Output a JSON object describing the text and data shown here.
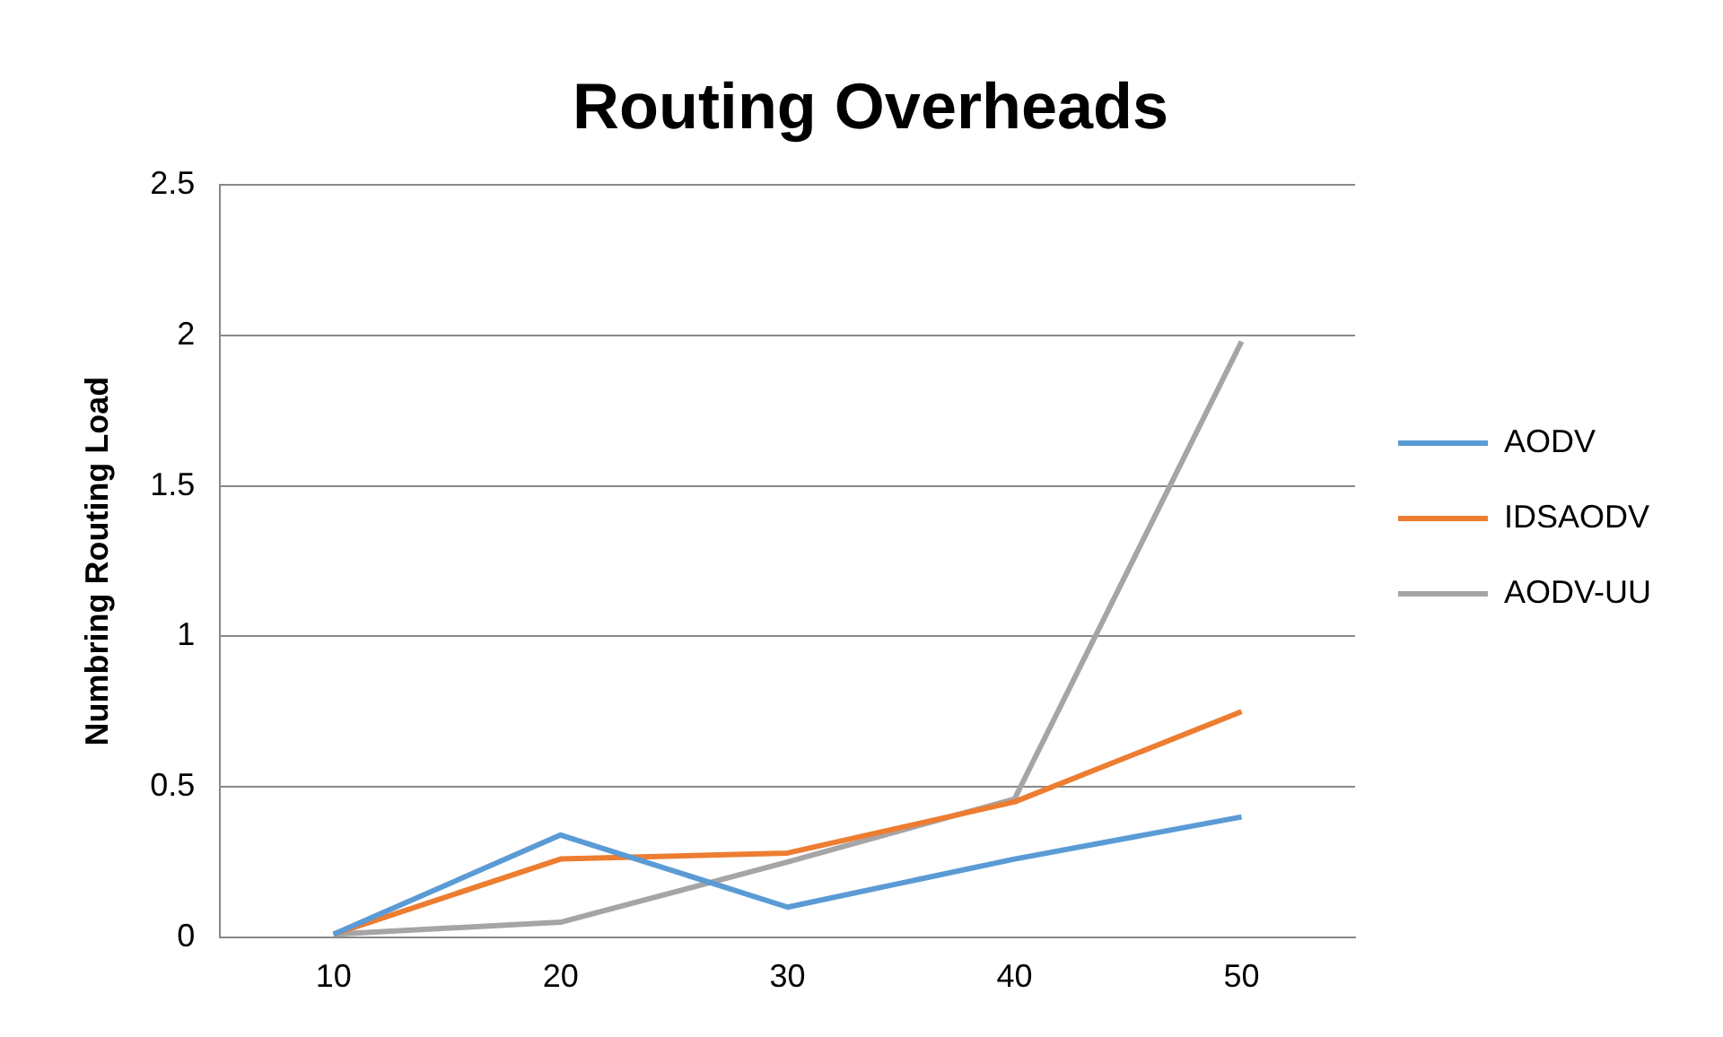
{
  "chart_data": {
    "type": "line",
    "title": "Routing Overheads",
    "ylabel": "Numbring Routing Load",
    "categories": [
      "10",
      "20",
      "30",
      "40",
      "50"
    ],
    "series": [
      {
        "name": "AODV",
        "color": "#5b9bd5",
        "values": [
          0.01,
          0.34,
          0.1,
          0.26,
          0.4
        ]
      },
      {
        "name": "IDSAODV",
        "color": "#ed7d31",
        "values": [
          0.01,
          0.26,
          0.28,
          0.45,
          0.75
        ]
      },
      {
        "name": "AODV-UU",
        "color": "#a5a5a5",
        "values": [
          0.01,
          0.05,
          0.25,
          0.46,
          1.98
        ]
      }
    ],
    "ylim": [
      0,
      2.5
    ],
    "yticks": [
      0,
      0.5,
      1,
      1.5,
      2,
      2.5
    ],
    "grid": "y",
    "legend": "right",
    "marker": "none",
    "line_style": "solid"
  }
}
